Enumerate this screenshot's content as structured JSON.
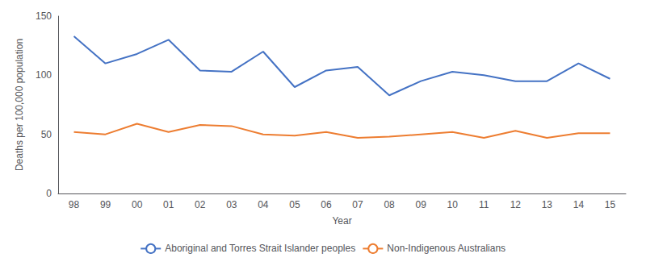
{
  "chart_data": {
    "type": "line",
    "xlabel": "Year",
    "ylabel": "Deaths per 100,000 population",
    "categories": [
      "98",
      "99",
      "00",
      "01",
      "02",
      "03",
      "04",
      "05",
      "06",
      "07",
      "08",
      "09",
      "10",
      "11",
      "12",
      "13",
      "14",
      "15"
    ],
    "series": [
      {
        "name": "Aboriginal and Torres Strait Islander peoples",
        "color": "#4472C4",
        "values": [
          133,
          110,
          118,
          130,
          104,
          103,
          120,
          90,
          104,
          107,
          83,
          95,
          103,
          100,
          95,
          95,
          110,
          97
        ]
      },
      {
        "name": "Non-Indigenous Australians",
        "color": "#ED7D31",
        "values": [
          52,
          50,
          59,
          52,
          58,
          57,
          50,
          49,
          52,
          47,
          48,
          50,
          52,
          47,
          53,
          47,
          51,
          51
        ]
      }
    ],
    "ylim": [
      0,
      150
    ],
    "yticks": [
      0,
      50,
      100,
      150
    ],
    "grid": false,
    "legend": "bottom"
  }
}
